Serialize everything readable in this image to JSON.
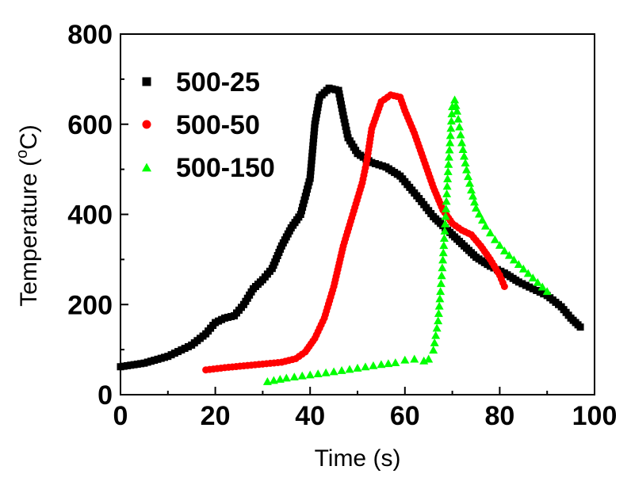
{
  "chart_data": {
    "type": "scatter",
    "title": "",
    "xlabel": "Time (s)",
    "ylabel": "Temperature (",
    "ylabel_sup": "o",
    "ylabel_unit": "C)",
    "xlim": [
      0,
      100
    ],
    "ylim": [
      0,
      800
    ],
    "xticks": [
      "0",
      "20",
      "40",
      "60",
      "80",
      "100"
    ],
    "yticks": [
      "0",
      "200",
      "400",
      "600",
      "800"
    ],
    "grid": false,
    "legend_position": "top-left",
    "series": [
      {
        "name": "500-25",
        "marker": "square",
        "color": "#000000",
        "points": [
          [
            0,
            62
          ],
          [
            5,
            70
          ],
          [
            10,
            85
          ],
          [
            15,
            110
          ],
          [
            18,
            135
          ],
          [
            20,
            160
          ],
          [
            22,
            170
          ],
          [
            24,
            175
          ],
          [
            26,
            200
          ],
          [
            28,
            235
          ],
          [
            30,
            255
          ],
          [
            32,
            280
          ],
          [
            34,
            330
          ],
          [
            36,
            370
          ],
          [
            38,
            400
          ],
          [
            40,
            480
          ],
          [
            41,
            600
          ],
          [
            42,
            660
          ],
          [
            44,
            680
          ],
          [
            46,
            675
          ],
          [
            47,
            620
          ],
          [
            48,
            570
          ],
          [
            50,
            535
          ],
          [
            53,
            515
          ],
          [
            56,
            505
          ],
          [
            59,
            485
          ],
          [
            61,
            460
          ],
          [
            63,
            435
          ],
          [
            66,
            395
          ],
          [
            69,
            365
          ],
          [
            72,
            335
          ],
          [
            75,
            305
          ],
          [
            78,
            285
          ],
          [
            81,
            270
          ],
          [
            84,
            250
          ],
          [
            87,
            235
          ],
          [
            90,
            220
          ],
          [
            93,
            195
          ],
          [
            95,
            170
          ],
          [
            97,
            150
          ]
        ]
      },
      {
        "name": "500-50",
        "marker": "circle",
        "color": "#ff0000",
        "points": [
          [
            18,
            55
          ],
          [
            22,
            60
          ],
          [
            26,
            64
          ],
          [
            30,
            68
          ],
          [
            34,
            72
          ],
          [
            37,
            80
          ],
          [
            39,
            95
          ],
          [
            41,
            125
          ],
          [
            43,
            170
          ],
          [
            45,
            240
          ],
          [
            47,
            330
          ],
          [
            49,
            400
          ],
          [
            51,
            470
          ],
          [
            52,
            520
          ],
          [
            53,
            590
          ],
          [
            55,
            650
          ],
          [
            57,
            665
          ],
          [
            59,
            660
          ],
          [
            60,
            630
          ],
          [
            62,
            580
          ],
          [
            64,
            520
          ],
          [
            66,
            460
          ],
          [
            68,
            410
          ],
          [
            70,
            380
          ],
          [
            72,
            365
          ],
          [
            74,
            355
          ],
          [
            76,
            330
          ],
          [
            78,
            300
          ],
          [
            80,
            265
          ],
          [
            81,
            240
          ]
        ]
      },
      {
        "name": "500-150",
        "marker": "triangle",
        "color": "#00ff00",
        "points": [
          [
            31,
            30
          ],
          [
            35,
            38
          ],
          [
            40,
            45
          ],
          [
            45,
            52
          ],
          [
            50,
            60
          ],
          [
            55,
            68
          ],
          [
            58,
            72
          ],
          [
            60,
            78
          ],
          [
            62,
            80
          ],
          [
            64,
            76
          ],
          [
            65,
            80
          ],
          [
            66,
            100
          ],
          [
            67,
            165
          ],
          [
            67.5,
            230
          ],
          [
            68,
            300
          ],
          [
            68.5,
            380
          ],
          [
            69,
            480
          ],
          [
            69.5,
            560
          ],
          [
            70,
            640
          ],
          [
            70.5,
            655
          ],
          [
            71,
            630
          ],
          [
            72,
            560
          ],
          [
            73,
            500
          ],
          [
            74,
            455
          ],
          [
            75,
            415
          ],
          [
            77,
            375
          ],
          [
            79,
            345
          ],
          [
            81,
            320
          ],
          [
            83,
            300
          ],
          [
            85,
            280
          ],
          [
            87,
            260
          ],
          [
            89,
            240
          ],
          [
            90,
            230
          ]
        ]
      }
    ]
  }
}
